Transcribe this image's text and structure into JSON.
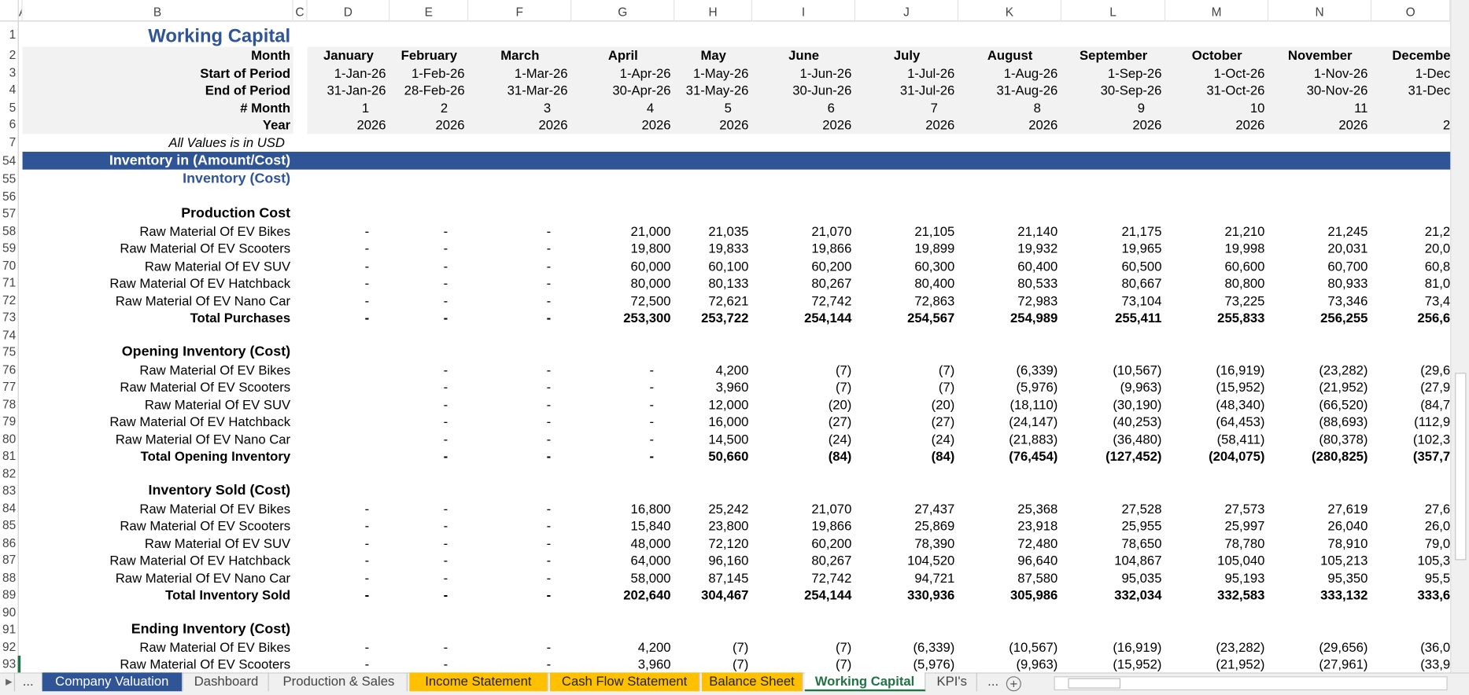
{
  "column_letters": [
    "A",
    "B",
    "C",
    "D",
    "E",
    "F",
    "G",
    "H",
    "I",
    "J",
    "K",
    "L",
    "M",
    "N",
    "O"
  ],
  "rows": [
    {
      "row": "1",
      "label": "Working Capital"
    },
    {
      "row": "2",
      "label": "Month",
      "cells": [
        "January",
        "February",
        "March",
        "April",
        "May",
        "June",
        "July",
        "August",
        "September",
        "October",
        "November",
        "Decembe"
      ]
    },
    {
      "row": "3",
      "label": "Start of Period",
      "cells": [
        "1-Jan-26",
        "1-Feb-26",
        "1-Mar-26",
        "1-Apr-26",
        "1-May-26",
        "1-Jun-26",
        "1-Jul-26",
        "1-Aug-26",
        "1-Sep-26",
        "1-Oct-26",
        "1-Nov-26",
        "1-Dec"
      ]
    },
    {
      "row": "4",
      "label": "End of Period",
      "cells": [
        "31-Jan-26",
        "28-Feb-26",
        "31-Mar-26",
        "30-Apr-26",
        "31-May-26",
        "30-Jun-26",
        "31-Jul-26",
        "31-Aug-26",
        "30-Sep-26",
        "31-Oct-26",
        "30-Nov-26",
        "31-Dec"
      ]
    },
    {
      "row": "5",
      "label": "# Month",
      "cells": [
        "1",
        "2",
        "3",
        "4",
        "5",
        "6",
        "7",
        "8",
        "9",
        "10",
        "11",
        null
      ]
    },
    {
      "row": "6",
      "label": "Year",
      "cells": [
        "2026",
        "2026",
        "2026",
        "2026",
        "2026",
        "2026",
        "2026",
        "2026",
        "2026",
        "2026",
        "2026",
        "2"
      ]
    },
    {
      "row": "7",
      "label": "All Values is in USD"
    },
    {
      "row": "54",
      "label": "Inventory in (Amount/Cost)"
    },
    {
      "row": "55",
      "label": "Inventory (Cost)"
    },
    {
      "row": "56"
    },
    {
      "row": "57",
      "label": "Production Cost"
    },
    {
      "row": "58",
      "label": "Raw Material Of EV Bikes",
      "cells": [
        "-",
        "-",
        "-",
        "21,000",
        "21,035",
        "21,070",
        "21,105",
        "21,140",
        "21,175",
        "21,210",
        "21,245",
        "21,2"
      ]
    },
    {
      "row": "59",
      "label": "Raw Material Of EV Scooters",
      "cells": [
        "-",
        "-",
        "-",
        "19,800",
        "19,833",
        "19,866",
        "19,899",
        "19,932",
        "19,965",
        "19,998",
        "20,031",
        "20,0"
      ]
    },
    {
      "row": "70",
      "label": "Raw Material Of EV SUV",
      "cells": [
        "-",
        "-",
        "-",
        "60,000",
        "60,100",
        "60,200",
        "60,300",
        "60,400",
        "60,500",
        "60,600",
        "60,700",
        "60,8"
      ]
    },
    {
      "row": "71",
      "label": "Raw Material Of EV Hatchback",
      "cells": [
        "-",
        "-",
        "-",
        "80,000",
        "80,133",
        "80,267",
        "80,400",
        "80,533",
        "80,667",
        "80,800",
        "80,933",
        "81,0"
      ]
    },
    {
      "row": "72",
      "label": "Raw Material Of EV Nano Car",
      "cells": [
        "-",
        "-",
        "-",
        "72,500",
        "72,621",
        "72,742",
        "72,863",
        "72,983",
        "73,104",
        "73,225",
        "73,346",
        "73,4"
      ]
    },
    {
      "row": "73",
      "label": "Total Purchases",
      "cells": [
        "-",
        "-",
        "-",
        "253,300",
        "253,722",
        "254,144",
        "254,567",
        "254,989",
        "255,411",
        "255,833",
        "256,255",
        "256,6"
      ]
    },
    {
      "row": "74"
    },
    {
      "row": "75",
      "label": "Opening Inventory (Cost)"
    },
    {
      "row": "76",
      "label": "Raw Material Of EV Bikes",
      "cells": [
        null,
        "-",
        "-",
        "-",
        "4,200",
        "(7)",
        "(7)",
        "(6,339)",
        "(10,567)",
        "(16,919)",
        "(23,282)",
        "(29,6"
      ]
    },
    {
      "row": "77",
      "label": "Raw Material Of EV Scooters",
      "cells": [
        null,
        "-",
        "-",
        "-",
        "3,960",
        "(7)",
        "(7)",
        "(5,976)",
        "(9,963)",
        "(15,952)",
        "(21,952)",
        "(27,9"
      ]
    },
    {
      "row": "78",
      "label": "Raw Material Of EV SUV",
      "cells": [
        null,
        "-",
        "-",
        "-",
        "12,000",
        "(20)",
        "(20)",
        "(18,110)",
        "(30,190)",
        "(48,340)",
        "(66,520)",
        "(84,7"
      ]
    },
    {
      "row": "79",
      "label": "Raw Material Of EV Hatchback",
      "cells": [
        null,
        "-",
        "-",
        "-",
        "16,000",
        "(27)",
        "(27)",
        "(24,147)",
        "(40,253)",
        "(64,453)",
        "(88,693)",
        "(112,9"
      ]
    },
    {
      "row": "80",
      "label": "Raw Material Of EV Nano Car",
      "cells": [
        null,
        "-",
        "-",
        "-",
        "14,500",
        "(24)",
        "(24)",
        "(21,883)",
        "(36,480)",
        "(58,411)",
        "(80,378)",
        "(102,3"
      ]
    },
    {
      "row": "81",
      "label": "Total Opening Inventory",
      "cells": [
        null,
        "-",
        "-",
        "-",
        "50,660",
        "(84)",
        "(84)",
        "(76,454)",
        "(127,452)",
        "(204,075)",
        "(280,825)",
        "(357,7"
      ]
    },
    {
      "row": "82"
    },
    {
      "row": "83",
      "label": "Inventory Sold (Cost)"
    },
    {
      "row": "84",
      "label": "Raw Material Of EV Bikes",
      "cells": [
        "-",
        "-",
        "-",
        "16,800",
        "25,242",
        "21,070",
        "27,437",
        "25,368",
        "27,528",
        "27,573",
        "27,619",
        "27,6"
      ]
    },
    {
      "row": "85",
      "label": "Raw Material Of EV Scooters",
      "cells": [
        "-",
        "-",
        "-",
        "15,840",
        "23,800",
        "19,866",
        "25,869",
        "23,918",
        "25,955",
        "25,997",
        "26,040",
        "26,0"
      ]
    },
    {
      "row": "86",
      "label": "Raw Material Of EV SUV",
      "cells": [
        "-",
        "-",
        "-",
        "48,000",
        "72,120",
        "60,200",
        "78,390",
        "72,480",
        "78,650",
        "78,780",
        "78,910",
        "79,0"
      ]
    },
    {
      "row": "87",
      "label": "Raw Material Of EV Hatchback",
      "cells": [
        "-",
        "-",
        "-",
        "64,000",
        "96,160",
        "80,267",
        "104,520",
        "96,640",
        "104,867",
        "105,040",
        "105,213",
        "105,3"
      ]
    },
    {
      "row": "88",
      "label": "Raw Material Of EV Nano Car",
      "cells": [
        "-",
        "-",
        "-",
        "58,000",
        "87,145",
        "72,742",
        "94,721",
        "87,580",
        "95,035",
        "95,193",
        "95,350",
        "95,5"
      ]
    },
    {
      "row": "89",
      "label": "Total Inventory Sold",
      "cells": [
        "-",
        "-",
        "-",
        "202,640",
        "304,467",
        "254,144",
        "330,936",
        "305,986",
        "332,034",
        "332,583",
        "333,132",
        "333,6"
      ]
    },
    {
      "row": "90"
    },
    {
      "row": "91",
      "label": "Ending Inventory (Cost)"
    },
    {
      "row": "92",
      "label": "Raw Material Of EV Bikes",
      "cells": [
        "-",
        "-",
        "-",
        "4,200",
        "(7)",
        "(7)",
        "(6,339)",
        "(10,567)",
        "(16,919)",
        "(23,282)",
        "(29,656)",
        "(36,0"
      ]
    },
    {
      "row": "93",
      "label": "Raw Material Of EV Scooters",
      "cells": [
        "-",
        "-",
        "-",
        "3,960",
        "(7)",
        "(7)",
        "(5,976)",
        "(9,963)",
        "(15,952)",
        "(21,952)",
        "(27,961)",
        "(33,9"
      ]
    }
  ],
  "tabs_more_left": "...",
  "tabs": [
    "Company Valuation",
    "Dashboard",
    "Production & Sales",
    "Income Statement",
    "Cash Flow Statement",
    "Balance Sheet",
    "Working Capital",
    "KPI's"
  ],
  "tabs_more_right": "..."
}
